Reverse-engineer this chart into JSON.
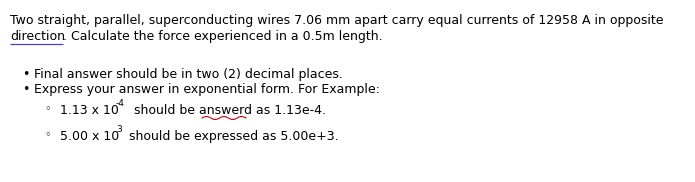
{
  "bg_color": "#ffffff",
  "fig_width": 6.95,
  "fig_height": 1.82,
  "dpi": 100,
  "line1": "Two straight, parallel, superconducting wires 7.06 mm apart carry equal currents of 12958 A in opposite",
  "line2_word": "direction",
  "line2_rest": ". Calculate the force experienced in a 0.5m length.",
  "bullet1": "Final answer should be in two (2) decimal places.",
  "bullet2": "Express your answer in exponential form. For Example:",
  "sub1_prefix": "1.13 x 10",
  "sub1_exp": "-4",
  "sub1_suffix": " should be answerd as 1.13e-4.",
  "sub2_prefix": "5.00 x 10",
  "sub2_exp": "3",
  "sub2_suffix": " should be expressed as 5.00e+3.",
  "text_color": "#000000",
  "underline_color": "#4444cc",
  "spellcheck_color": "#cc0000",
  "font_size": 9.0,
  "small_font_size": 6.5
}
